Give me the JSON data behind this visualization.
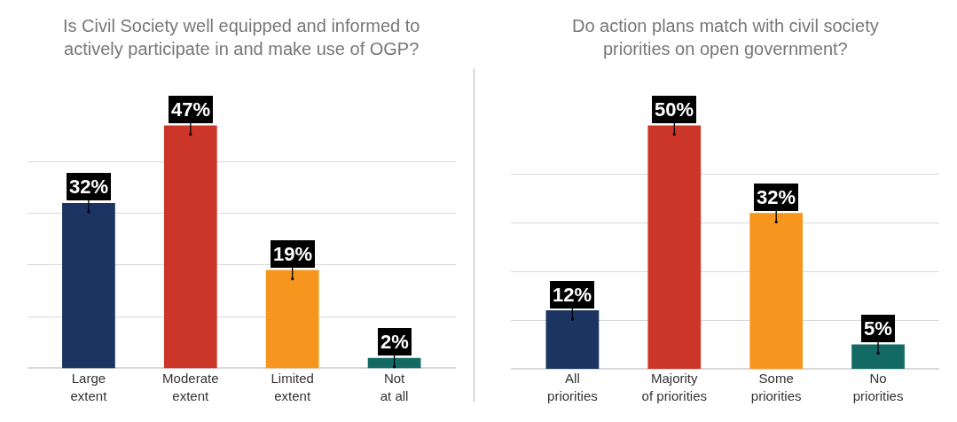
{
  "chart_data": [
    {
      "type": "bar",
      "title": "Is Civil Society well equipped and informed to\nactively participate in and make use of OGP?",
      "categories": [
        "Large\nextent",
        "Moderate\nextent",
        "Limited\nextent",
        "Not\nat all"
      ],
      "values": [
        32,
        47,
        19,
        2
      ],
      "value_labels": [
        "32%",
        "47%",
        "19%",
        "2%"
      ],
      "colors": [
        "#1b3461",
        "#cc3628",
        "#f7961e",
        "#136a65"
      ],
      "yticks": [
        {
          "value": 10,
          "label": null
        },
        {
          "value": 20,
          "label": null
        },
        {
          "value": 30,
          "label": null
        },
        {
          "value": 40,
          "label": null
        }
      ],
      "grid": "y",
      "tick_labels": "x"
    },
    {
      "type": "bar",
      "title": "Do action plans match with civil society\npriorities on open government?",
      "categories": [
        "All\npriorities",
        "Majority\nof priorities",
        "Some\npriorities",
        "No\npriorities"
      ],
      "values": [
        12,
        50,
        32,
        5
      ],
      "value_labels": [
        "12%",
        "50%",
        "32%",
        "5%"
      ],
      "colors": [
        "#1b3461",
        "#cc3628",
        "#f7961e",
        "#136a65"
      ],
      "yticks": [
        {
          "value": 10,
          "label": null
        },
        {
          "value": 20,
          "label": null
        },
        {
          "value": 30,
          "label": null
        },
        {
          "value": 40,
          "label": null
        }
      ],
      "grid": "y",
      "tick_labels": "x"
    }
  ]
}
